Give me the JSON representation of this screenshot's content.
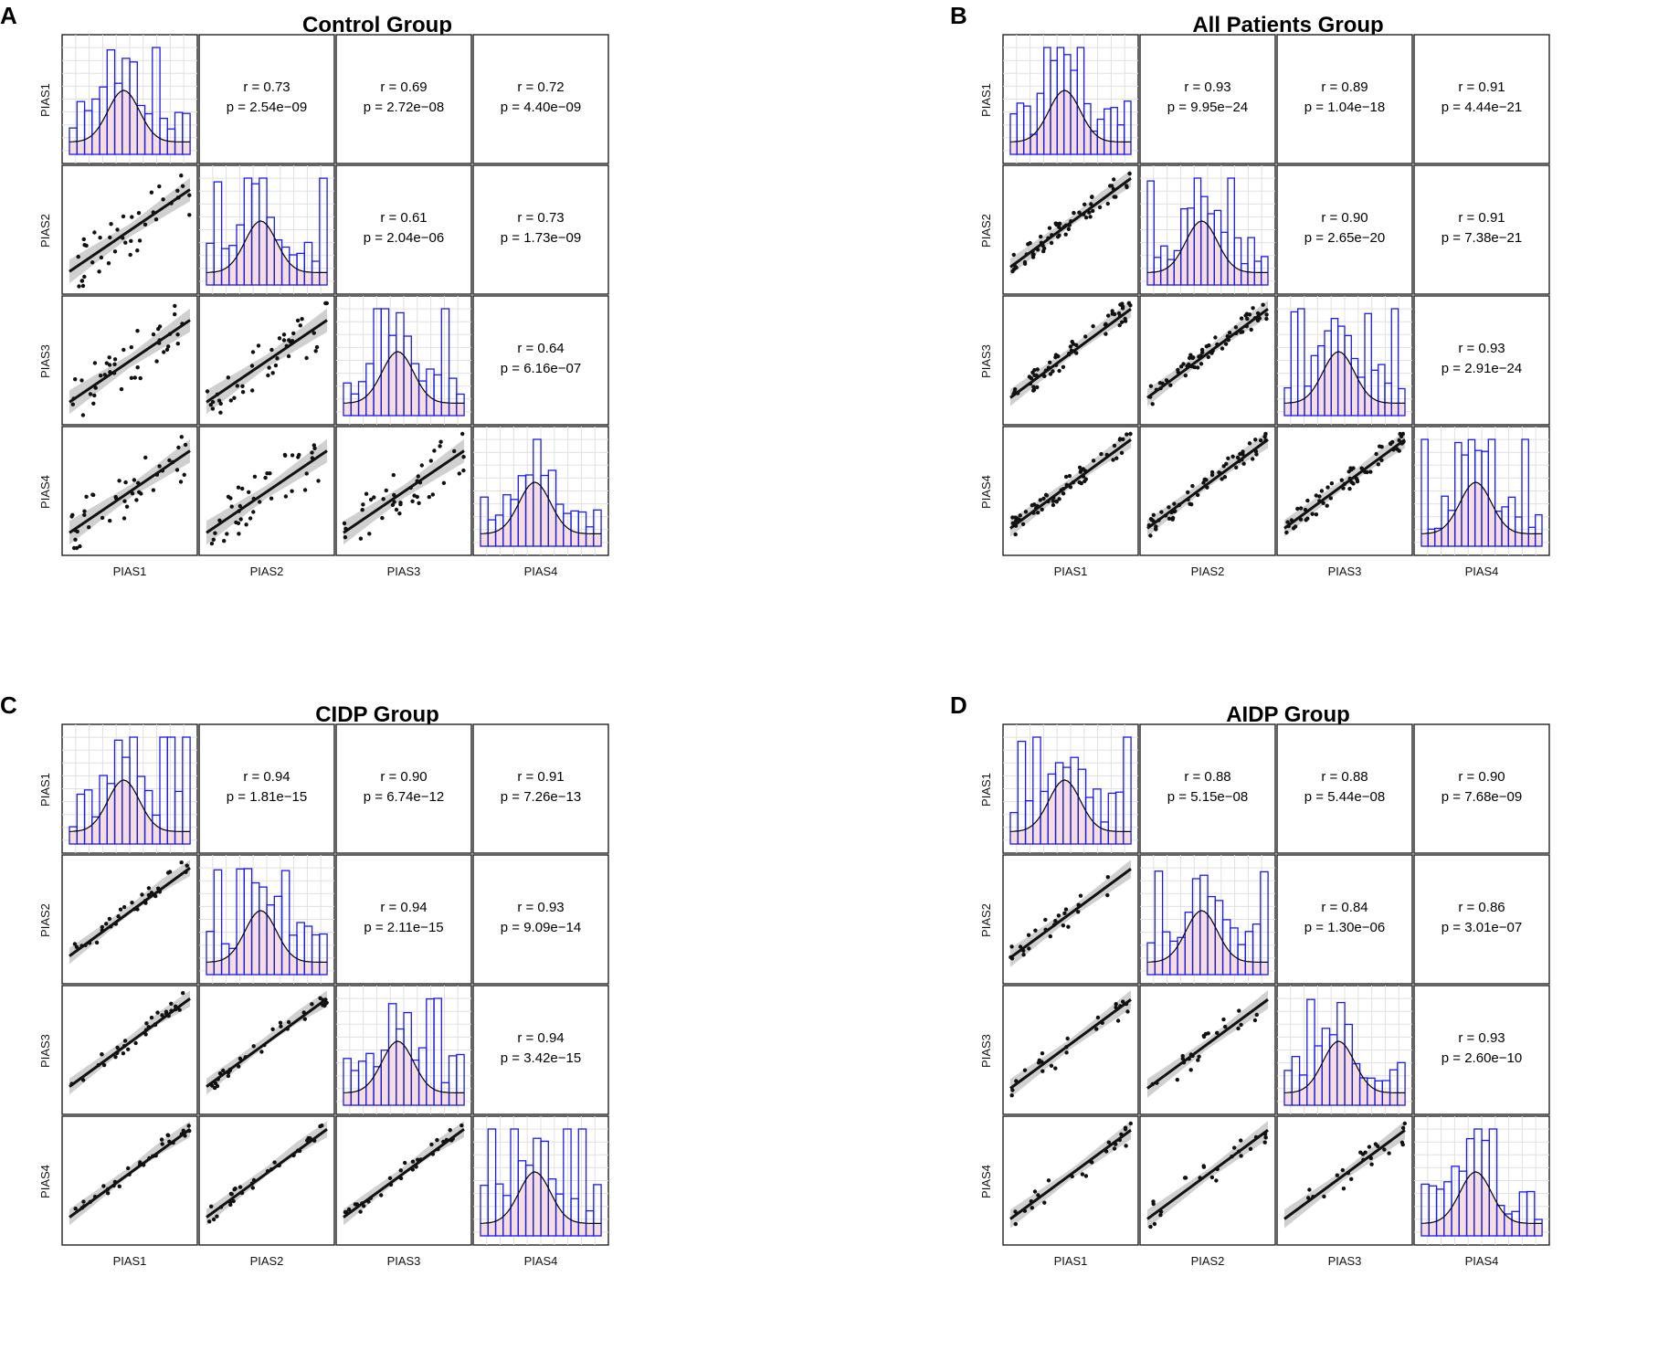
{
  "chart_data": [
    {
      "type": "scatter-matrix",
      "letter": "A",
      "title": "Control Group",
      "variables": [
        "PIAS1",
        "PIAS2",
        "PIAS3",
        "PIAS4"
      ],
      "correlations": [
        {
          "row": 0,
          "col": 1,
          "r": "r = 0.73",
          "p": "p = 2.54e−09"
        },
        {
          "row": 0,
          "col": 2,
          "r": "r = 0.69",
          "p": "p = 2.72e−08"
        },
        {
          "row": 0,
          "col": 3,
          "r": "r = 0.72",
          "p": "p = 4.40e−09"
        },
        {
          "row": 1,
          "col": 2,
          "r": "r = 0.61",
          "p": "p = 2.04e−06"
        },
        {
          "row": 1,
          "col": 3,
          "r": "r = 0.73",
          "p": "p = 1.73e−09"
        },
        {
          "row": 2,
          "col": 3,
          "r": "r = 0.64",
          "p": "p = 6.16e−07"
        }
      ]
    },
    {
      "type": "scatter-matrix",
      "letter": "B",
      "title": "All Patients Group",
      "variables": [
        "PIAS1",
        "PIAS2",
        "PIAS3",
        "PIAS4"
      ],
      "correlations": [
        {
          "row": 0,
          "col": 1,
          "r": "r = 0.93",
          "p": "p = 9.95e−24"
        },
        {
          "row": 0,
          "col": 2,
          "r": "r = 0.89",
          "p": "p = 1.04e−18"
        },
        {
          "row": 0,
          "col": 3,
          "r": "r = 0.91",
          "p": "p = 4.44e−21"
        },
        {
          "row": 1,
          "col": 2,
          "r": "r = 0.90",
          "p": "p = 2.65e−20"
        },
        {
          "row": 1,
          "col": 3,
          "r": "r = 0.91",
          "p": "p = 7.38e−21"
        },
        {
          "row": 2,
          "col": 3,
          "r": "r = 0.93",
          "p": "p = 2.91e−24"
        }
      ]
    },
    {
      "type": "scatter-matrix",
      "letter": "C",
      "title": "CIDP Group",
      "variables": [
        "PIAS1",
        "PIAS2",
        "PIAS3",
        "PIAS4"
      ],
      "correlations": [
        {
          "row": 0,
          "col": 1,
          "r": "r = 0.94",
          "p": "p = 1.81e−15"
        },
        {
          "row": 0,
          "col": 2,
          "r": "r = 0.90",
          "p": "p = 6.74e−12"
        },
        {
          "row": 0,
          "col": 3,
          "r": "r = 0.91",
          "p": "p = 7.26e−13"
        },
        {
          "row": 1,
          "col": 2,
          "r": "r = 0.94",
          "p": "p = 2.11e−15"
        },
        {
          "row": 1,
          "col": 3,
          "r": "r = 0.93",
          "p": "p = 9.09e−14"
        },
        {
          "row": 2,
          "col": 3,
          "r": "r = 0.94",
          "p": "p = 3.42e−15"
        }
      ]
    },
    {
      "type": "scatter-matrix",
      "letter": "D",
      "title": "AIDP Group",
      "variables": [
        "PIAS1",
        "PIAS2",
        "PIAS3",
        "PIAS4"
      ],
      "correlations": [
        {
          "row": 0,
          "col": 1,
          "r": "r = 0.88",
          "p": "p = 5.15e−08"
        },
        {
          "row": 0,
          "col": 2,
          "r": "r = 0.88",
          "p": "p = 5.44e−08"
        },
        {
          "row": 0,
          "col": 3,
          "r": "r = 0.90",
          "p": "p = 7.68e−09"
        },
        {
          "row": 1,
          "col": 2,
          "r": "r = 0.84",
          "p": "p = 1.30e−06"
        },
        {
          "row": 1,
          "col": 3,
          "r": "r = 0.86",
          "p": "p = 3.01e−07"
        },
        {
          "row": 2,
          "col": 3,
          "r": "r = 0.93",
          "p": "p = 2.60e−10"
        }
      ]
    }
  ],
  "colors": {
    "frame": "#222222",
    "hist_bar_stroke": "#1a1aee",
    "hist_fill": "#f6dede",
    "grid": "#e0e0e0",
    "point": "#111111",
    "line": "#111111",
    "band": "#c4c4c4"
  }
}
